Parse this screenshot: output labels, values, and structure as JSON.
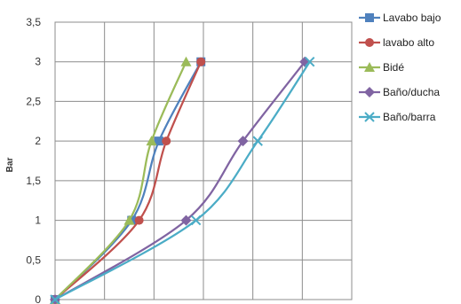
{
  "chart_data": {
    "type": "line",
    "title": "",
    "xlabel": "",
    "ylabel": "Bar",
    "ylim": [
      0,
      3.5
    ],
    "xlim": [
      0,
      6
    ],
    "y_ticks": [
      {
        "value": 0,
        "label": "0"
      },
      {
        "value": 0.5,
        "label": "0,5"
      },
      {
        "value": 1,
        "label": "1"
      },
      {
        "value": 1.5,
        "label": "1,5"
      },
      {
        "value": 2,
        "label": "2"
      },
      {
        "value": 2.5,
        "label": "2,5"
      },
      {
        "value": 3,
        "label": "3"
      },
      {
        "value": 3.5,
        "label": "3,5"
      }
    ],
    "x_gridlines": [
      0,
      1,
      2,
      3,
      4,
      5,
      6
    ],
    "grid": true,
    "legend_position": "right",
    "series": [
      {
        "name": "Lavabo bajo",
        "color": "#4F81BD",
        "marker": "square",
        "points": [
          [
            0,
            0
          ],
          [
            1.55,
            1.0
          ],
          [
            2.1,
            2.0
          ],
          [
            2.95,
            3.0
          ]
        ]
      },
      {
        "name": "lavabo alto",
        "color": "#C0504D",
        "marker": "circle",
        "points": [
          [
            0,
            0
          ],
          [
            1.7,
            1.0
          ],
          [
            2.25,
            2.0
          ],
          [
            2.95,
            3.0
          ]
        ]
      },
      {
        "name": "Bidé",
        "color": "#9BBB59",
        "marker": "triangle",
        "points": [
          [
            0,
            0
          ],
          [
            1.5,
            1.0
          ],
          [
            1.95,
            2.0
          ],
          [
            2.65,
            3.0
          ]
        ]
      },
      {
        "name": "Baño/ducha",
        "color": "#8064A2",
        "marker": "diamond",
        "points": [
          [
            0,
            0
          ],
          [
            2.65,
            1.0
          ],
          [
            3.8,
            2.0
          ],
          [
            5.05,
            3.0
          ]
        ]
      },
      {
        "name": "Baño/barra",
        "color": "#4BACC6",
        "marker": "x",
        "points": [
          [
            0,
            0
          ],
          [
            2.85,
            1.0
          ],
          [
            4.1,
            2.0
          ],
          [
            5.15,
            3.0
          ]
        ]
      }
    ]
  }
}
